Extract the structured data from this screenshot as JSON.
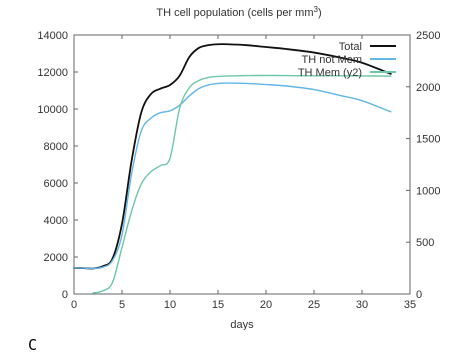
{
  "chart_data": {
    "type": "line",
    "title_text": "TH cell population (cells per mm",
    "title_sup": "3",
    "title_end": ")",
    "xlabel": "days",
    "ylabel": "",
    "y2label": "",
    "xlim": [
      0,
      35
    ],
    "ylim": [
      0,
      14000
    ],
    "y2lim": [
      0,
      2500
    ],
    "xticks": [
      0,
      5,
      10,
      15,
      20,
      25,
      30,
      35
    ],
    "yticks": [
      0,
      2000,
      4000,
      6000,
      8000,
      10000,
      12000,
      14000
    ],
    "y2ticks": [
      0,
      500,
      1000,
      1500,
      2000,
      2500
    ],
    "grid": false,
    "legend_position": "top-right",
    "series": [
      {
        "name": "Total",
        "axis": "y",
        "color": "#111111",
        "x": [
          0,
          1,
          2,
          3,
          4,
          5,
          6,
          7,
          8,
          9,
          10,
          11,
          12,
          13,
          14,
          15,
          16,
          18,
          20,
          22,
          25,
          28,
          30,
          33
        ],
        "y": [
          1400,
          1400,
          1380,
          1500,
          1900,
          3800,
          7200,
          9800,
          10800,
          11100,
          11300,
          11800,
          12800,
          13300,
          13450,
          13500,
          13500,
          13450,
          13350,
          13250,
          13050,
          12750,
          12500,
          11900
        ]
      },
      {
        "name": "TH not Mem",
        "axis": "y",
        "color": "#62b5e5",
        "x": [
          0,
          1,
          2,
          3,
          4,
          5,
          6,
          7,
          8,
          9,
          10,
          11,
          12,
          13,
          14,
          15,
          16,
          18,
          20,
          22,
          25,
          28,
          30,
          33
        ],
        "y": [
          1400,
          1400,
          1380,
          1450,
          1800,
          3200,
          6500,
          8800,
          9500,
          9800,
          9900,
          10200,
          10700,
          11100,
          11300,
          11380,
          11400,
          11380,
          11320,
          11250,
          11050,
          10700,
          10450,
          9850
        ]
      },
      {
        "name": "TH Mem (y2)",
        "axis": "y2",
        "color": "#6cc7a4",
        "x": [
          2,
          3,
          4,
          5,
          6,
          7,
          8,
          9,
          10,
          11,
          12,
          13,
          14,
          15,
          16,
          18,
          20,
          22,
          25,
          28,
          30,
          33
        ],
        "y": [
          10,
          30,
          110,
          450,
          800,
          1060,
          1180,
          1240,
          1310,
          1790,
          1990,
          2060,
          2090,
          2100,
          2105,
          2108,
          2110,
          2108,
          2106,
          2106,
          2105,
          2103
        ]
      }
    ]
  },
  "panel_label": "C"
}
